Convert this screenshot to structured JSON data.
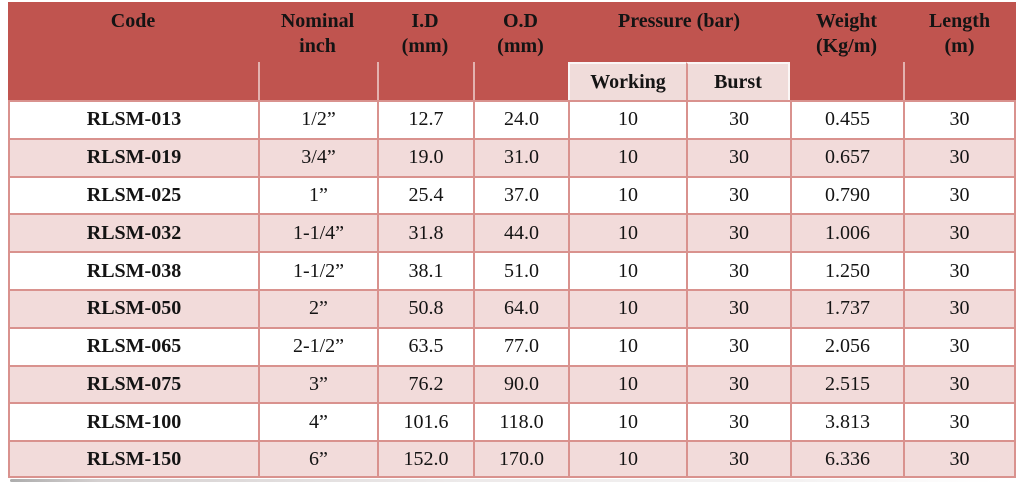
{
  "table": {
    "colors": {
      "header_bg": "#c0544f",
      "subheader_bg": "#f0dcda",
      "alt_row_bg": "#f2dbda",
      "row_bg": "#ffffff",
      "border": "#d9928e",
      "text": "#141414"
    },
    "header": {
      "code": "Code",
      "nominal": "Nominal\ninch",
      "id": "I.D\n(mm)",
      "od": "O.D\n(mm)",
      "pressure": "Pressure (bar)",
      "working": "Working",
      "burst": "Burst",
      "weight": "Weight\n(Kg/m)",
      "length": "Length\n(m)"
    },
    "column_keys": [
      "code",
      "nominal",
      "id",
      "od",
      "working",
      "burst",
      "weight",
      "length"
    ],
    "rows": [
      {
        "code": "RLSM-013",
        "nominal": "1/2”",
        "id": "12.7",
        "od": "24.0",
        "working": "10",
        "burst": "30",
        "weight": "0.455",
        "length": "30"
      },
      {
        "code": "RLSM-019",
        "nominal": "3/4”",
        "id": "19.0",
        "od": "31.0",
        "working": "10",
        "burst": "30",
        "weight": "0.657",
        "length": "30"
      },
      {
        "code": "RLSM-025",
        "nominal": "1”",
        "id": "25.4",
        "od": "37.0",
        "working": "10",
        "burst": "30",
        "weight": "0.790",
        "length": "30"
      },
      {
        "code": "RLSM-032",
        "nominal": "1-1/4”",
        "id": "31.8",
        "od": "44.0",
        "working": "10",
        "burst": "30",
        "weight": "1.006",
        "length": "30"
      },
      {
        "code": "RLSM-038",
        "nominal": "1-1/2”",
        "id": "38.1",
        "od": "51.0",
        "working": "10",
        "burst": "30",
        "weight": "1.250",
        "length": "30"
      },
      {
        "code": "RLSM-050",
        "nominal": "2”",
        "id": "50.8",
        "od": "64.0",
        "working": "10",
        "burst": "30",
        "weight": "1.737",
        "length": "30"
      },
      {
        "code": "RLSM-065",
        "nominal": "2-1/2”",
        "id": "63.5",
        "od": "77.0",
        "working": "10",
        "burst": "30",
        "weight": "2.056",
        "length": "30"
      },
      {
        "code": "RLSM-075",
        "nominal": "3”",
        "id": "76.2",
        "od": "90.0",
        "working": "10",
        "burst": "30",
        "weight": "2.515",
        "length": "30"
      },
      {
        "code": "RLSM-100",
        "nominal": "4”",
        "id": "101.6",
        "od": "118.0",
        "working": "10",
        "burst": "30",
        "weight": "3.813",
        "length": "30"
      },
      {
        "code": "RLSM-150",
        "nominal": "6”",
        "id": "152.0",
        "od": "170.0",
        "working": "10",
        "burst": "30",
        "weight": "6.336",
        "length": "30"
      }
    ]
  }
}
